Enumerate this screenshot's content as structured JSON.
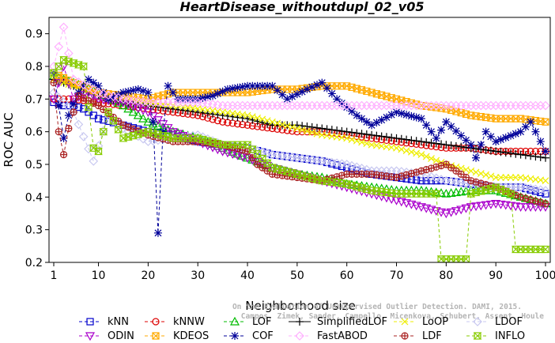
{
  "chart_data": {
    "type": "line",
    "title": "HeartDisease_withoutdupl_02_v05",
    "xlabel": "Neighborhood size",
    "ylabel": "ROC AUC",
    "xlim": [
      1,
      100
    ],
    "ylim": [
      0.2,
      0.95
    ],
    "x_ticks": [
      1,
      10,
      20,
      30,
      40,
      50,
      60,
      70,
      80,
      90,
      100
    ],
    "y_ticks": [
      0.2,
      0.3,
      0.4,
      0.5,
      0.6,
      0.7,
      0.8,
      0.9
    ],
    "grid": false,
    "legend_position": "bottom",
    "credit_lines": [
      "Campos, Zimek, Sander, Campello, Micenkova, Schubert, Assent, Houle",
      "On the Evaluation of Unsupervised Outlier Detection. DAMI, 2015."
    ],
    "series": [
      {
        "name": "kNN",
        "color": "#0000cc",
        "marker": "square",
        "dash": "4,3",
        "points": [
          [
            1,
            0.69
          ],
          [
            3,
            0.68
          ],
          [
            5,
            0.68
          ],
          [
            7,
            0.67
          ],
          [
            10,
            0.64
          ],
          [
            15,
            0.62
          ],
          [
            20,
            0.6
          ],
          [
            25,
            0.59
          ],
          [
            30,
            0.57
          ],
          [
            35,
            0.56
          ],
          [
            40,
            0.55
          ],
          [
            45,
            0.53
          ],
          [
            50,
            0.52
          ],
          [
            55,
            0.51
          ],
          [
            60,
            0.49
          ],
          [
            65,
            0.47
          ],
          [
            70,
            0.46
          ],
          [
            75,
            0.45
          ],
          [
            80,
            0.45
          ],
          [
            85,
            0.44
          ],
          [
            90,
            0.43
          ],
          [
            95,
            0.43
          ],
          [
            100,
            0.41
          ]
        ]
      },
      {
        "name": "kNNW",
        "color": "#dd0000",
        "marker": "circle",
        "dash": "4,3",
        "points": [
          [
            1,
            0.7
          ],
          [
            5,
            0.7
          ],
          [
            10,
            0.69
          ],
          [
            15,
            0.68
          ],
          [
            20,
            0.67
          ],
          [
            25,
            0.66
          ],
          [
            30,
            0.65
          ],
          [
            35,
            0.63
          ],
          [
            40,
            0.62
          ],
          [
            45,
            0.61
          ],
          [
            50,
            0.6
          ],
          [
            55,
            0.6
          ],
          [
            60,
            0.59
          ],
          [
            65,
            0.58
          ],
          [
            70,
            0.57
          ],
          [
            75,
            0.56
          ],
          [
            80,
            0.55
          ],
          [
            85,
            0.55
          ],
          [
            90,
            0.54
          ],
          [
            95,
            0.54
          ],
          [
            100,
            0.54
          ]
        ]
      },
      {
        "name": "LOF",
        "color": "#00bb00",
        "marker": "triangle-up",
        "dash": "4,3",
        "points": [
          [
            1,
            0.77
          ],
          [
            5,
            0.75
          ],
          [
            10,
            0.72
          ],
          [
            15,
            0.68
          ],
          [
            20,
            0.63
          ],
          [
            25,
            0.6
          ],
          [
            30,
            0.58
          ],
          [
            35,
            0.55
          ],
          [
            40,
            0.52
          ],
          [
            45,
            0.49
          ],
          [
            50,
            0.47
          ],
          [
            55,
            0.46
          ],
          [
            60,
            0.44
          ],
          [
            65,
            0.43
          ],
          [
            70,
            0.42
          ],
          [
            75,
            0.42
          ],
          [
            80,
            0.41
          ],
          [
            85,
            0.42
          ],
          [
            90,
            0.42
          ],
          [
            95,
            0.4
          ],
          [
            100,
            0.38
          ]
        ]
      },
      {
        "name": "SimplifiedLOF",
        "color": "#000000",
        "marker": "plus",
        "dash": "",
        "points": [
          [
            1,
            0.76
          ],
          [
            5,
            0.74
          ],
          [
            10,
            0.71
          ],
          [
            15,
            0.69
          ],
          [
            20,
            0.68
          ],
          [
            25,
            0.67
          ],
          [
            30,
            0.66
          ],
          [
            35,
            0.65
          ],
          [
            40,
            0.64
          ],
          [
            45,
            0.62
          ],
          [
            50,
            0.62
          ],
          [
            55,
            0.61
          ],
          [
            60,
            0.6
          ],
          [
            65,
            0.59
          ],
          [
            70,
            0.58
          ],
          [
            75,
            0.57
          ],
          [
            80,
            0.56
          ],
          [
            85,
            0.55
          ],
          [
            90,
            0.54
          ],
          [
            95,
            0.53
          ],
          [
            100,
            0.52
          ]
        ]
      },
      {
        "name": "LoOP",
        "color": "#eeee00",
        "marker": "x",
        "dash": "4,3",
        "points": [
          [
            1,
            0.76
          ],
          [
            5,
            0.74
          ],
          [
            10,
            0.72
          ],
          [
            15,
            0.7
          ],
          [
            20,
            0.69
          ],
          [
            25,
            0.68
          ],
          [
            30,
            0.67
          ],
          [
            35,
            0.66
          ],
          [
            40,
            0.65
          ],
          [
            45,
            0.63
          ],
          [
            50,
            0.61
          ],
          [
            55,
            0.59
          ],
          [
            60,
            0.58
          ],
          [
            65,
            0.56
          ],
          [
            70,
            0.55
          ],
          [
            75,
            0.53
          ],
          [
            80,
            0.5
          ],
          [
            85,
            0.48
          ],
          [
            90,
            0.46
          ],
          [
            95,
            0.46
          ],
          [
            100,
            0.45
          ]
        ]
      },
      {
        "name": "LDOF",
        "color": "#c8c8f0",
        "marker": "diamond",
        "dash": "4,3",
        "points": [
          [
            1,
            0.72
          ],
          [
            5,
            0.66
          ],
          [
            9,
            0.51
          ],
          [
            12,
            0.65
          ],
          [
            15,
            0.61
          ],
          [
            20,
            0.57
          ],
          [
            25,
            0.58
          ],
          [
            30,
            0.59
          ],
          [
            35,
            0.56
          ],
          [
            40,
            0.55
          ],
          [
            45,
            0.53
          ],
          [
            50,
            0.52
          ],
          [
            55,
            0.51
          ],
          [
            60,
            0.5
          ],
          [
            65,
            0.48
          ],
          [
            70,
            0.48
          ],
          [
            75,
            0.47
          ],
          [
            80,
            0.45
          ],
          [
            85,
            0.44
          ],
          [
            90,
            0.43
          ],
          [
            95,
            0.43
          ],
          [
            100,
            0.42
          ]
        ]
      },
      {
        "name": "ODIN",
        "color": "#aa00cc",
        "marker": "triangle-down",
        "dash": "4,3",
        "points": [
          [
            1,
            0.7
          ],
          [
            3,
            0.8
          ],
          [
            5,
            0.7
          ],
          [
            8,
            0.72
          ],
          [
            10,
            0.7
          ],
          [
            15,
            0.69
          ],
          [
            20,
            0.66
          ],
          [
            25,
            0.6
          ],
          [
            30,
            0.57
          ],
          [
            35,
            0.54
          ],
          [
            40,
            0.52
          ],
          [
            45,
            0.49
          ],
          [
            50,
            0.47
          ],
          [
            55,
            0.45
          ],
          [
            60,
            0.43
          ],
          [
            65,
            0.41
          ],
          [
            70,
            0.39
          ],
          [
            75,
            0.37
          ],
          [
            80,
            0.35
          ],
          [
            85,
            0.37
          ],
          [
            90,
            0.38
          ],
          [
            95,
            0.37
          ],
          [
            100,
            0.37
          ]
        ]
      },
      {
        "name": "KDEOS",
        "color": "#ffaa00",
        "marker": "square-x",
        "dash": "4,3",
        "points": [
          [
            1,
            0.78
          ],
          [
            5,
            0.75
          ],
          [
            10,
            0.72
          ],
          [
            15,
            0.71
          ],
          [
            20,
            0.7
          ],
          [
            25,
            0.72
          ],
          [
            30,
            0.72
          ],
          [
            35,
            0.72
          ],
          [
            40,
            0.72
          ],
          [
            45,
            0.73
          ],
          [
            50,
            0.73
          ],
          [
            55,
            0.74
          ],
          [
            60,
            0.74
          ],
          [
            65,
            0.72
          ],
          [
            70,
            0.7
          ],
          [
            75,
            0.68
          ],
          [
            80,
            0.67
          ],
          [
            85,
            0.65
          ],
          [
            90,
            0.64
          ],
          [
            95,
            0.64
          ],
          [
            100,
            0.63
          ]
        ]
      },
      {
        "name": "COF",
        "color": "#000099",
        "marker": "star",
        "dash": "4,3",
        "points": [
          [
            1,
            0.78
          ],
          [
            3,
            0.58
          ],
          [
            4,
            0.65
          ],
          [
            6,
            0.72
          ],
          [
            8,
            0.76
          ],
          [
            10,
            0.74
          ],
          [
            12,
            0.7
          ],
          [
            15,
            0.72
          ],
          [
            18,
            0.73
          ],
          [
            20,
            0.72
          ],
          [
            21,
            0.63
          ],
          [
            22,
            0.29
          ],
          [
            23,
            0.6
          ],
          [
            24,
            0.74
          ],
          [
            26,
            0.7
          ],
          [
            30,
            0.7
          ],
          [
            33,
            0.71
          ],
          [
            36,
            0.73
          ],
          [
            40,
            0.74
          ],
          [
            45,
            0.74
          ],
          [
            48,
            0.7
          ],
          [
            52,
            0.73
          ],
          [
            55,
            0.75
          ],
          [
            58,
            0.7
          ],
          [
            62,
            0.65
          ],
          [
            65,
            0.62
          ],
          [
            70,
            0.66
          ],
          [
            75,
            0.64
          ],
          [
            78,
            0.58
          ],
          [
            80,
            0.63
          ],
          [
            85,
            0.56
          ],
          [
            86,
            0.52
          ],
          [
            88,
            0.6
          ],
          [
            90,
            0.57
          ],
          [
            95,
            0.6
          ],
          [
            97,
            0.63
          ],
          [
            100,
            0.54
          ]
        ]
      },
      {
        "name": "FastABOD",
        "color": "#ffb0ff",
        "marker": "diamond",
        "dash": "4,3",
        "points": [
          [
            1,
            0.8
          ],
          [
            3,
            0.92
          ],
          [
            5,
            0.76
          ],
          [
            10,
            0.72
          ],
          [
            15,
            0.7
          ],
          [
            20,
            0.69
          ],
          [
            25,
            0.69
          ],
          [
            30,
            0.69
          ],
          [
            35,
            0.68
          ],
          [
            40,
            0.68
          ],
          [
            45,
            0.68
          ],
          [
            50,
            0.68
          ],
          [
            55,
            0.68
          ],
          [
            60,
            0.68
          ],
          [
            65,
            0.68
          ],
          [
            70,
            0.68
          ],
          [
            75,
            0.68
          ],
          [
            80,
            0.68
          ],
          [
            85,
            0.68
          ],
          [
            90,
            0.68
          ],
          [
            95,
            0.68
          ],
          [
            100,
            0.68
          ]
        ]
      },
      {
        "name": "LDF",
        "color": "#aa2222",
        "marker": "circle-plus",
        "dash": "4,3",
        "points": [
          [
            1,
            0.75
          ],
          [
            2,
            0.6
          ],
          [
            3,
            0.53
          ],
          [
            4,
            0.61
          ],
          [
            6,
            0.71
          ],
          [
            10,
            0.68
          ],
          [
            15,
            0.62
          ],
          [
            20,
            0.59
          ],
          [
            25,
            0.57
          ],
          [
            30,
            0.57
          ],
          [
            35,
            0.56
          ],
          [
            40,
            0.54
          ],
          [
            42,
            0.5
          ],
          [
            45,
            0.47
          ],
          [
            50,
            0.46
          ],
          [
            55,
            0.45
          ],
          [
            60,
            0.47
          ],
          [
            65,
            0.47
          ],
          [
            70,
            0.46
          ],
          [
            75,
            0.48
          ],
          [
            80,
            0.5
          ],
          [
            85,
            0.45
          ],
          [
            90,
            0.43
          ],
          [
            95,
            0.4
          ],
          [
            100,
            0.38
          ]
        ]
      },
      {
        "name": "INFLO",
        "color": "#88cc00",
        "marker": "hourglass",
        "dash": "4,3",
        "points": [
          [
            1,
            0.78
          ],
          [
            3,
            0.82
          ],
          [
            5,
            0.81
          ],
          [
            7,
            0.8
          ],
          [
            9,
            0.55
          ],
          [
            10,
            0.54
          ],
          [
            12,
            0.66
          ],
          [
            15,
            0.58
          ],
          [
            20,
            0.6
          ],
          [
            25,
            0.58
          ],
          [
            30,
            0.58
          ],
          [
            35,
            0.56
          ],
          [
            40,
            0.56
          ],
          [
            45,
            0.49
          ],
          [
            50,
            0.47
          ],
          [
            55,
            0.45
          ],
          [
            60,
            0.44
          ],
          [
            65,
            0.42
          ],
          [
            70,
            0.41
          ],
          [
            75,
            0.41
          ],
          [
            78,
            0.41
          ],
          [
            79,
            0.21
          ],
          [
            84,
            0.21
          ],
          [
            85,
            0.41
          ],
          [
            90,
            0.43
          ],
          [
            93,
            0.41
          ],
          [
            94,
            0.24
          ],
          [
            100,
            0.24
          ]
        ]
      }
    ]
  }
}
